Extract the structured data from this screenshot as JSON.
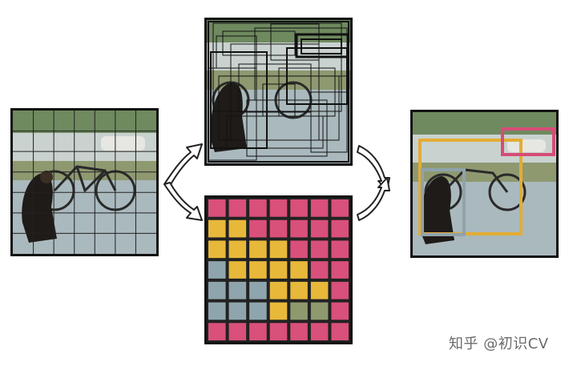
{
  "watermark": "知乎 @初识CV",
  "grid": {
    "size": 7
  },
  "class_colors": {
    "pink": "#d9507a",
    "yellow": "#e8b83a",
    "slate": "#8fa5ad",
    "olive": "#8e9a6e"
  },
  "class_map": [
    [
      "pink",
      "pink",
      "pink",
      "pink",
      "pink",
      "pink",
      "pink"
    ],
    [
      "yellow",
      "yellow",
      "pink",
      "pink",
      "pink",
      "pink",
      "pink"
    ],
    [
      "yellow",
      "yellow",
      "yellow",
      "yellow",
      "pink",
      "pink",
      "pink"
    ],
    [
      "slate",
      "yellow",
      "yellow",
      "yellow",
      "yellow",
      "pink",
      "pink"
    ],
    [
      "slate",
      "slate",
      "slate",
      "yellow",
      "yellow",
      "yellow",
      "pink"
    ],
    [
      "slate",
      "slate",
      "slate",
      "yellow",
      "olive",
      "olive",
      "pink"
    ],
    [
      "pink",
      "pink",
      "pink",
      "pink",
      "pink",
      "pink",
      "pink"
    ]
  ],
  "detection_colors": {
    "bicycle": "#e3ac35",
    "dog": "#8fa3ab",
    "car": "#d64d77"
  }
}
